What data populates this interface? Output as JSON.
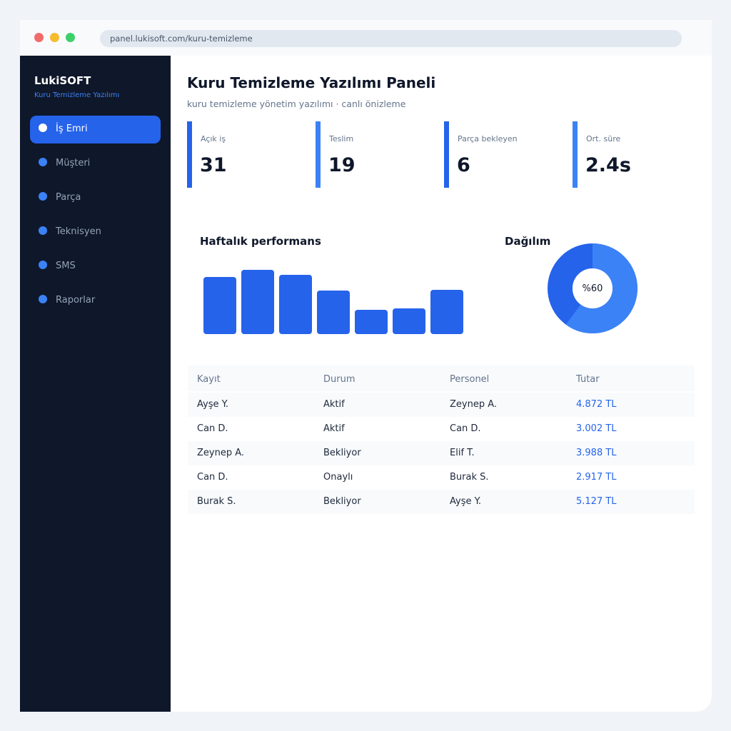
{
  "browser": {
    "url": "panel.lukisoft.com/kuru-temizleme"
  },
  "sidebar": {
    "brand": "LukiSOFT",
    "brand_sub": "Kuru Temizleme Yazılımı",
    "items": [
      {
        "label": "İş Emri",
        "active": true
      },
      {
        "label": "Müşteri",
        "active": false
      },
      {
        "label": "Parça",
        "active": false
      },
      {
        "label": "Teknisyen",
        "active": false
      },
      {
        "label": "SMS",
        "active": false
      },
      {
        "label": "Raporlar",
        "active": false
      }
    ]
  },
  "header": {
    "title": "Kuru Temizleme Yazılımı Paneli",
    "subtitle": "kuru temizleme yönetim yazılımı · canlı önizleme"
  },
  "kpis": [
    {
      "label": "Açık iş",
      "value": "31"
    },
    {
      "label": "Teslim",
      "value": "19"
    },
    {
      "label": "Parça bekleyen",
      "value": "6"
    },
    {
      "label": "Ort. süre",
      "value": "2.4s"
    }
  ],
  "sections": {
    "performance_title": "Haftalık performans",
    "distribution_title": "Dağılım"
  },
  "chart_data": [
    {
      "type": "bar",
      "title": "Haftalık performans",
      "values": [
        80,
        90,
        83,
        61,
        34,
        36,
        62
      ],
      "ylim": [
        0,
        100
      ],
      "color": "#2563eb"
    },
    {
      "type": "pie",
      "title": "Dağılım",
      "center_label": "%60",
      "values": [
        60,
        40
      ],
      "colors": [
        "#3b82f6",
        "#2563eb"
      ]
    }
  ],
  "table": {
    "headers": [
      "Kayıt",
      "Durum",
      "Personel",
      "Tutar"
    ],
    "rows": [
      [
        "Ayşe Y.",
        "Aktif",
        "Zeynep A.",
        "4.872 TL"
      ],
      [
        "Can D.",
        "Aktif",
        "Can D.",
        "3.002 TL"
      ],
      [
        "Zeynep A.",
        "Bekliyor",
        "Elif T.",
        "3.988 TL"
      ],
      [
        "Can D.",
        "Onaylı",
        "Burak S.",
        "2.917 TL"
      ],
      [
        "Burak S.",
        "Bekliyor",
        "Ayşe Y.",
        "5.127 TL"
      ]
    ]
  },
  "colors": {
    "accent": "#2563eb",
    "accent_light": "#3b82f6",
    "sidebar_bg": "#0f172a"
  }
}
